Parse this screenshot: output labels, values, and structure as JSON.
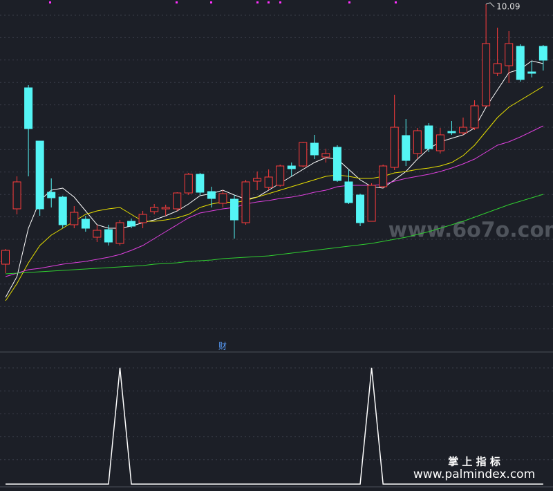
{
  "chart_data": [
    {
      "type": "candlestick",
      "ylim": [
        5.1,
        10.15
      ],
      "up_color": "#ff3c3c",
      "down_color": "#54f5f5",
      "open": [
        6.33,
        7.13,
        8.88,
        8.11,
        7.37,
        7.3,
        6.9,
        6.98,
        6.72,
        6.83,
        6.63,
        6.95,
        6.93,
        7.09,
        7.13,
        7.13,
        7.36,
        7.63,
        7.38,
        7.21,
        7.27,
        6.93,
        7.53,
        7.44,
        7.47,
        7.75,
        7.75,
        8.08,
        7.88,
        8.02,
        7.52,
        7.33,
        6.95,
        7.45,
        7.73,
        8.19,
        7.93,
        8.33,
        7.97,
        8.25,
        8.23,
        8.3,
        8.62,
        9.09,
        9.2,
        9.48,
        9.11,
        9.48
      ],
      "high": [
        6.55,
        7.6,
        8.92,
        8.11,
        7.57,
        7.32,
        7.17,
        7.03,
        6.9,
        6.9,
        6.97,
        6.99,
        7.1,
        7.2,
        7.19,
        7.37,
        7.65,
        7.65,
        7.45,
        7.4,
        7.33,
        7.55,
        7.67,
        7.7,
        7.77,
        7.8,
        8.1,
        8.2,
        8.0,
        8.05,
        7.7,
        7.35,
        7.5,
        7.77,
        8.78,
        8.43,
        8.3,
        8.37,
        8.3,
        8.4,
        8.45,
        8.7,
        10.09,
        9.75,
        9.7,
        9.51,
        9.27,
        9.5
      ],
      "low": [
        6.2,
        7.05,
        7.6,
        7.03,
        7.15,
        6.85,
        6.85,
        6.8,
        6.65,
        6.6,
        6.6,
        6.85,
        6.85,
        7.05,
        7.03,
        7.1,
        7.33,
        7.33,
        7.15,
        7.15,
        6.7,
        6.9,
        7.4,
        7.4,
        7.45,
        7.6,
        7.73,
        7.85,
        7.8,
        7.52,
        7.2,
        6.88,
        6.95,
        7.43,
        7.69,
        7.75,
        7.85,
        7.95,
        7.93,
        8.2,
        8.2,
        8.27,
        8.6,
        9.05,
        8.95,
        8.97,
        9.03,
        9.13
      ],
      "close": [
        6.53,
        7.52,
        8.29,
        7.13,
        7.29,
        6.9,
        7.08,
        6.85,
        6.82,
        6.65,
        6.93,
        6.88,
        7.05,
        7.15,
        7.15,
        7.36,
        7.63,
        7.37,
        7.28,
        7.35,
        6.97,
        7.52,
        7.57,
        7.59,
        7.75,
        7.71,
        8.09,
        7.91,
        7.93,
        7.54,
        7.22,
        6.93,
        7.47,
        7.75,
        8.31,
        7.83,
        8.26,
        8.0,
        8.2,
        8.23,
        8.31,
        8.62,
        9.52,
        9.23,
        9.52,
        9.0,
        9.09,
        9.28
      ],
      "series": [
        {
          "color": "#ffffff",
          "values": [
            5.85,
            6.15,
            6.85,
            7.25,
            7.4,
            7.43,
            7.3,
            7.1,
            6.9,
            6.85,
            6.85,
            6.88,
            6.93,
            6.97,
            7.03,
            7.1,
            7.2,
            7.32,
            7.35,
            7.4,
            7.33,
            7.27,
            7.3,
            7.4,
            7.5,
            7.6,
            7.7,
            7.8,
            7.87,
            7.85,
            7.7,
            7.55,
            7.45,
            7.43,
            7.55,
            7.67,
            7.85,
            8.0,
            8.1,
            8.15,
            8.2,
            8.3,
            8.6,
            8.85,
            9.1,
            9.15,
            9.27,
            9.23
          ]
        },
        {
          "color": "#e8e000",
          "values": [
            5.8,
            6.05,
            6.35,
            6.6,
            6.75,
            6.85,
            6.95,
            7.05,
            7.1,
            7.13,
            7.15,
            7.05,
            6.95,
            6.95,
            6.97,
            7.0,
            7.05,
            7.15,
            7.2,
            7.23,
            7.22,
            7.25,
            7.3,
            7.35,
            7.4,
            7.45,
            7.5,
            7.55,
            7.6,
            7.62,
            7.6,
            7.57,
            7.57,
            7.6,
            7.65,
            7.67,
            7.7,
            7.72,
            7.75,
            7.8,
            7.9,
            8.05,
            8.25,
            8.45,
            8.6,
            8.7,
            8.8,
            8.9
          ]
        },
        {
          "color": "#e040e0",
          "values": [
            6.15,
            6.2,
            6.25,
            6.27,
            6.3,
            6.33,
            6.35,
            6.37,
            6.4,
            6.43,
            6.47,
            6.53,
            6.6,
            6.7,
            6.8,
            6.9,
            7.0,
            7.07,
            7.1,
            7.13,
            7.15,
            7.2,
            7.23,
            7.25,
            7.28,
            7.3,
            7.33,
            7.37,
            7.4,
            7.45,
            7.47,
            7.47,
            7.47,
            7.48,
            7.53,
            7.57,
            7.6,
            7.63,
            7.67,
            7.72,
            7.78,
            7.85,
            7.95,
            8.05,
            8.1,
            8.17,
            8.25,
            8.33
          ]
        },
        {
          "color": "#30d030",
          "values": [
            6.19,
            6.2,
            6.21,
            6.22,
            6.23,
            6.24,
            6.25,
            6.26,
            6.27,
            6.28,
            6.29,
            6.3,
            6.31,
            6.33,
            6.34,
            6.35,
            6.37,
            6.38,
            6.39,
            6.41,
            6.42,
            6.43,
            6.44,
            6.45,
            6.47,
            6.49,
            6.51,
            6.53,
            6.55,
            6.57,
            6.59,
            6.61,
            6.63,
            6.66,
            6.69,
            6.72,
            6.76,
            6.8,
            6.85,
            6.9,
            6.95,
            7.01,
            7.07,
            7.13,
            7.19,
            7.24,
            7.29,
            7.34
          ]
        }
      ],
      "annotation": "财"
    },
    {
      "type": "line",
      "ylim": [
        0,
        1.13
      ],
      "color": "#ffffff",
      "values": [
        0,
        0,
        0,
        0,
        0,
        0,
        0,
        0,
        0,
        0,
        1,
        0,
        0,
        0,
        0,
        0,
        0,
        0,
        0,
        0,
        0,
        0,
        0,
        0,
        0,
        0,
        0,
        0,
        0,
        0,
        0,
        0,
        1,
        0,
        0,
        0,
        0,
        0,
        0,
        0,
        0,
        0,
        0,
        0,
        0,
        0,
        0,
        0
      ]
    }
  ],
  "watermarks": [
    "www.6o7o.com",
    "掌 上 指 标",
    "www.palmindex.com"
  ]
}
